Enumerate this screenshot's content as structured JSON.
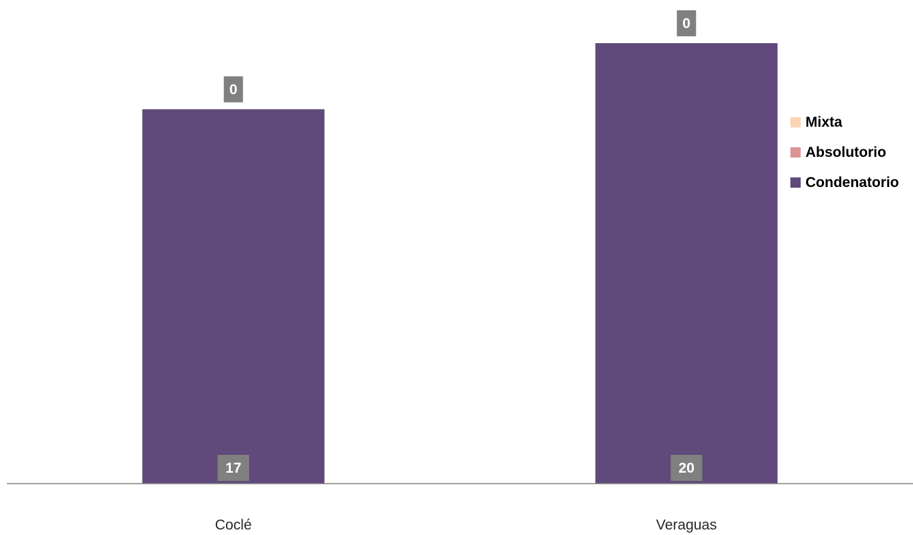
{
  "chart_data": {
    "type": "bar",
    "stacked": true,
    "categories": [
      "Coclé",
      "Veraguas"
    ],
    "series": [
      {
        "name": "Condenatorio",
        "values": [
          17,
          20
        ],
        "color": "#604a7b"
      },
      {
        "name": "Absolutorio",
        "values": [
          0,
          0
        ],
        "color": "#da9694"
      },
      {
        "name": "Mixta",
        "values": [
          0,
          0
        ],
        "color": "#fcd5b5"
      }
    ],
    "data_labels": {
      "Condenatorio": [
        "17",
        "20"
      ],
      "Mixta": [
        "0",
        "0"
      ]
    },
    "legend_order": [
      "Mixta",
      "Absolutorio",
      "Condenatorio"
    ],
    "ylim": [
      0,
      20
    ],
    "grid": false,
    "legend_position": "right",
    "label_box_color": "#808080"
  }
}
